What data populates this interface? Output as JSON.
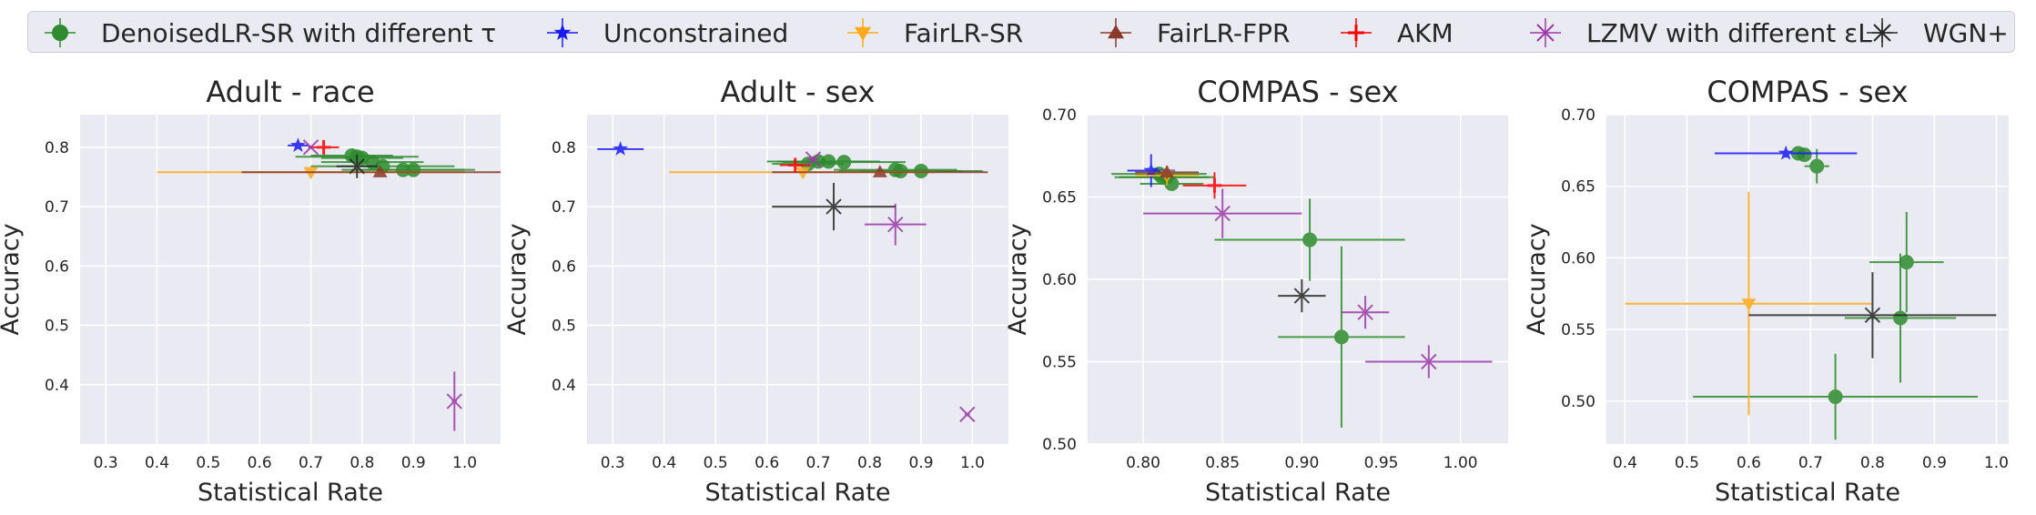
{
  "legend": [
    {
      "label": "DenoisedLR-SR with different τ",
      "color": "#2e8b2e",
      "marker": "circle"
    },
    {
      "label": "Unconstrained",
      "color": "#1a1aff",
      "marker": "star"
    },
    {
      "label": "FairLR-SR",
      "color": "#ffaa1a",
      "marker": "triangle-down"
    },
    {
      "label": "FairLR-FPR",
      "color": "#8b3a2a",
      "marker": "triangle-up"
    },
    {
      "label": "AKM",
      "color": "#ff0000",
      "marker": "plus"
    },
    {
      "label": "LZMV with different εL",
      "color": "#9b3aa8",
      "marker": "x"
    },
    {
      "label": "WGN+",
      "color": "#262626",
      "marker": "x-plus"
    }
  ],
  "chart_data": [
    {
      "type": "scatter",
      "title": "Adult - race",
      "xlabel": "Statistical Rate",
      "ylabel": "Accuracy",
      "xlim": [
        0.25,
        1.07
      ],
      "ylim": [
        0.3,
        0.855
      ],
      "xticks": [
        "0.3",
        "0.4",
        "0.5",
        "0.6",
        "0.7",
        "0.8",
        "0.9",
        "1.0"
      ],
      "yticks": [
        "0.4",
        "0.5",
        "0.6",
        "0.7",
        "0.8"
      ],
      "series": [
        {
          "name": "DenoisedLR-SR with different τ",
          "points": [
            {
              "x": 0.78,
              "y": 0.786,
              "xerr": 0.08,
              "yerr": 0.005
            },
            {
              "x": 0.79,
              "y": 0.784,
              "xerr": 0.12,
              "yerr": 0.005
            },
            {
              "x": 0.8,
              "y": 0.782,
              "xerr": 0.08,
              "yerr": 0.005
            },
            {
              "x": 0.82,
              "y": 0.775,
              "xerr": 0.1,
              "yerr": 0.005
            },
            {
              "x": 0.84,
              "y": 0.768,
              "xerr": 0.14,
              "yerr": 0.005
            },
            {
              "x": 0.88,
              "y": 0.762,
              "xerr": 0.12,
              "yerr": 0.004
            },
            {
              "x": 0.9,
              "y": 0.762,
              "xerr": 0.12,
              "yerr": 0.004
            }
          ]
        },
        {
          "name": "Unconstrained",
          "points": [
            {
              "x": 0.675,
              "y": 0.803,
              "xerr": 0.02,
              "yerr": 0.003
            }
          ]
        },
        {
          "name": "FairLR-SR",
          "points": [
            {
              "x": 0.7,
              "y": 0.758,
              "xerr": 0.3,
              "yerr": 0.003
            }
          ]
        },
        {
          "name": "FairLR-FPR",
          "points": [
            {
              "x": 0.835,
              "y": 0.758,
              "xerr": 0.27,
              "yerr": 0.003
            }
          ]
        },
        {
          "name": "AKM",
          "points": [
            {
              "x": 0.725,
              "y": 0.8,
              "xerr": 0.03,
              "yerr": 0.005
            }
          ]
        },
        {
          "name": "LZMV with different εL",
          "points": [
            {
              "x": 0.7,
              "y": 0.8,
              "xerr": 0.005,
              "yerr": 0.003
            },
            {
              "x": 0.98,
              "y": 0.372,
              "xerr": 0.005,
              "yerr": 0.05
            }
          ]
        },
        {
          "name": "WGN+",
          "points": [
            {
              "x": 0.79,
              "y": 0.768,
              "xerr": 0.04,
              "yerr": 0.02
            }
          ]
        }
      ]
    },
    {
      "type": "scatter",
      "title": "Adult - sex",
      "xlabel": "Statistical Rate",
      "ylabel": "Accuracy",
      "xlim": [
        0.25,
        1.07
      ],
      "ylim": [
        0.3,
        0.855
      ],
      "xticks": [
        "0.3",
        "0.4",
        "0.5",
        "0.6",
        "0.7",
        "0.8",
        "0.9",
        "1.0"
      ],
      "yticks": [
        "0.4",
        "0.5",
        "0.6",
        "0.7",
        "0.8"
      ],
      "series": [
        {
          "name": "DenoisedLR-SR with different τ",
          "points": [
            {
              "x": 0.68,
              "y": 0.772,
              "xerr": 0.07,
              "yerr": 0.005
            },
            {
              "x": 0.7,
              "y": 0.776,
              "xerr": 0.1,
              "yerr": 0.005
            },
            {
              "x": 0.72,
              "y": 0.776,
              "xerr": 0.1,
              "yerr": 0.005
            },
            {
              "x": 0.75,
              "y": 0.775,
              "xerr": 0.12,
              "yerr": 0.005
            },
            {
              "x": 0.85,
              "y": 0.762,
              "xerr": 0.12,
              "yerr": 0.004
            },
            {
              "x": 0.86,
              "y": 0.76,
              "xerr": 0.12,
              "yerr": 0.004
            },
            {
              "x": 0.9,
              "y": 0.76,
              "xerr": 0.12,
              "yerr": 0.004
            }
          ]
        },
        {
          "name": "Unconstrained",
          "points": [
            {
              "x": 0.315,
              "y": 0.797,
              "xerr": 0.045,
              "yerr": 0.003
            }
          ]
        },
        {
          "name": "FairLR-SR",
          "points": [
            {
              "x": 0.67,
              "y": 0.758,
              "xerr": 0.26,
              "yerr": 0.003
            }
          ]
        },
        {
          "name": "FairLR-FPR",
          "points": [
            {
              "x": 0.82,
              "y": 0.758,
              "xerr": 0.21,
              "yerr": 0.003
            }
          ]
        },
        {
          "name": "AKM",
          "points": [
            {
              "x": 0.655,
              "y": 0.77,
              "xerr": 0.03,
              "yerr": 0.005
            }
          ]
        },
        {
          "name": "LZMV with different εL",
          "points": [
            {
              "x": 0.69,
              "y": 0.78,
              "xerr": 0.01,
              "yerr": 0.005
            },
            {
              "x": 0.85,
              "y": 0.67,
              "xerr": 0.06,
              "yerr": 0.035
            },
            {
              "x": 0.99,
              "y": 0.35,
              "xerr": 0.005,
              "yerr": 0.003
            }
          ]
        },
        {
          "name": "WGN+",
          "points": [
            {
              "x": 0.73,
              "y": 0.7,
              "xerr": 0.12,
              "yerr": 0.04
            }
          ]
        }
      ]
    },
    {
      "type": "scatter",
      "title": "COMPAS - sex",
      "xlabel": "Statistical Rate",
      "ylabel": "Accuracy",
      "xlim": [
        0.765,
        1.03
      ],
      "ylim": [
        0.5,
        0.7
      ],
      "xticks": [
        "0.80",
        "0.85",
        "0.90",
        "0.95",
        "1.00"
      ],
      "yticks": [
        "0.50",
        "0.55",
        "0.60",
        "0.65",
        "0.70"
      ],
      "series": [
        {
          "name": "DenoisedLR-SR with different τ",
          "points": [
            {
              "x": 0.81,
              "y": 0.664,
              "xerr": 0.03,
              "yerr": 0.004
            },
            {
              "x": 0.812,
              "y": 0.662,
              "xerr": 0.03,
              "yerr": 0.004
            },
            {
              "x": 0.815,
              "y": 0.662,
              "xerr": 0.03,
              "yerr": 0.004
            },
            {
              "x": 0.818,
              "y": 0.658,
              "xerr": 0.02,
              "yerr": 0.004
            },
            {
              "x": 0.905,
              "y": 0.624,
              "xerr": 0.06,
              "yerr": 0.025
            },
            {
              "x": 0.925,
              "y": 0.565,
              "xerr": 0.04,
              "yerr": 0.055
            }
          ]
        },
        {
          "name": "Unconstrained",
          "points": [
            {
              "x": 0.805,
              "y": 0.666,
              "xerr": 0.015,
              "yerr": 0.01
            }
          ]
        },
        {
          "name": "FairLR-SR",
          "points": [
            {
              "x": 0.815,
              "y": 0.663,
              "xerr": 0.02,
              "yerr": 0.006
            }
          ]
        },
        {
          "name": "FairLR-FPR",
          "points": [
            {
              "x": 0.815,
              "y": 0.665,
              "xerr": 0.02,
              "yerr": 0.004
            }
          ]
        },
        {
          "name": "AKM",
          "points": [
            {
              "x": 0.845,
              "y": 0.657,
              "xerr": 0.02,
              "yerr": 0.008
            }
          ]
        },
        {
          "name": "LZMV with different εL",
          "points": [
            {
              "x": 0.85,
              "y": 0.64,
              "xerr": 0.05,
              "yerr": 0.015
            },
            {
              "x": 0.94,
              "y": 0.58,
              "xerr": 0.015,
              "yerr": 0.01
            },
            {
              "x": 0.98,
              "y": 0.55,
              "xerr": 0.04,
              "yerr": 0.01
            }
          ]
        },
        {
          "name": "WGN+",
          "points": [
            {
              "x": 0.9,
              "y": 0.59,
              "xerr": 0.015,
              "yerr": 0.01
            }
          ]
        }
      ]
    },
    {
      "type": "scatter",
      "title": "COMPAS - sex",
      "xlabel": "Statistical Rate",
      "ylabel": "Accuracy",
      "xlim": [
        0.37,
        1.02
      ],
      "ylim": [
        0.47,
        0.7
      ],
      "xticks": [
        "0.4",
        "0.5",
        "0.6",
        "0.7",
        "0.8",
        "0.9",
        "1.0"
      ],
      "yticks": [
        "0.50",
        "0.55",
        "0.60",
        "0.65",
        "0.70"
      ],
      "series": [
        {
          "name": "DenoisedLR-SR with different τ",
          "points": [
            {
              "x": 0.68,
              "y": 0.673,
              "xerr": 0.01,
              "yerr": 0.003
            },
            {
              "x": 0.69,
              "y": 0.672,
              "xerr": 0.01,
              "yerr": 0.003
            },
            {
              "x": 0.71,
              "y": 0.664,
              "xerr": 0.02,
              "yerr": 0.012
            },
            {
              "x": 0.855,
              "y": 0.597,
              "xerr": 0.06,
              "yerr": 0.035
            },
            {
              "x": 0.845,
              "y": 0.558,
              "xerr": 0.09,
              "yerr": 0.045
            },
            {
              "x": 0.74,
              "y": 0.503,
              "xerr": 0.23,
              "yerr": 0.03
            }
          ]
        },
        {
          "name": "Unconstrained",
          "points": [
            {
              "x": 0.66,
              "y": 0.673,
              "xerr": 0.115,
              "yerr": 0.003
            }
          ]
        },
        {
          "name": "FairLR-SR",
          "points": [
            {
              "x": 0.6,
              "y": 0.568,
              "xerr": 0.2,
              "yerr": 0.078
            }
          ]
        },
        {
          "name": "FairLR-FPR",
          "points": []
        },
        {
          "name": "AKM",
          "points": []
        },
        {
          "name": "LZMV with different εL",
          "points": []
        },
        {
          "name": "WGN+",
          "points": [
            {
              "x": 0.8,
              "y": 0.56,
              "xerr": 0.2,
              "yerr": 0.03
            }
          ]
        }
      ]
    }
  ]
}
